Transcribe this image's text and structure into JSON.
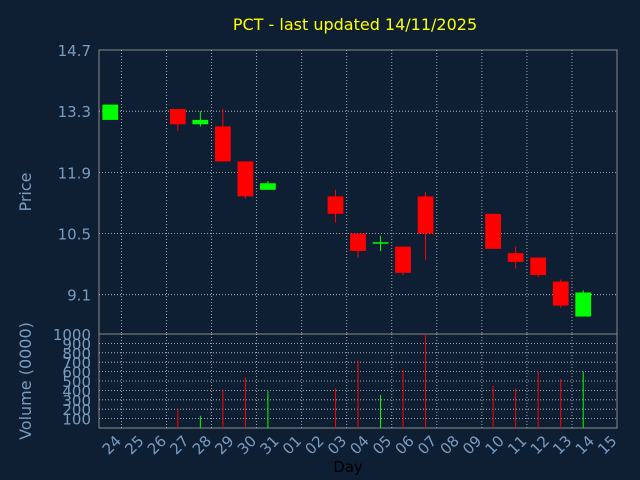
{
  "chart_data": [
    {
      "type": "candlestick",
      "title": "PCT - last updated 14/11/2025",
      "ylabel": "Price",
      "ylim": [
        8.2,
        14.7
      ],
      "yticks": [
        "14.7",
        "13.3",
        "11.9",
        "10.5",
        "9.1"
      ],
      "grid": true,
      "series": [
        {
          "day": "24",
          "open": 13.1,
          "high": 13.45,
          "low": 13.1,
          "close": 13.45
        },
        {
          "day": "27",
          "open": 13.35,
          "high": 13.35,
          "low": 12.85,
          "close": 13.0
        },
        {
          "day": "28",
          "open": 13.0,
          "high": 13.3,
          "low": 12.95,
          "close": 13.1
        },
        {
          "day": "29",
          "open": 12.95,
          "high": 13.35,
          "low": 12.15,
          "close": 12.15
        },
        {
          "day": "30",
          "open": 12.15,
          "high": 12.15,
          "low": 11.3,
          "close": 11.35
        },
        {
          "day": "31",
          "open": 11.5,
          "high": 11.7,
          "low": 11.5,
          "close": 11.65
        },
        {
          "day": "03",
          "open": 11.35,
          "high": 11.5,
          "low": 10.75,
          "close": 10.95
        },
        {
          "day": "04",
          "open": 10.5,
          "high": 10.5,
          "low": 9.95,
          "close": 10.1
        },
        {
          "day": "05",
          "open": 10.3,
          "high": 10.45,
          "low": 10.1,
          "close": 10.3
        },
        {
          "day": "06",
          "open": 10.2,
          "high": 10.2,
          "low": 9.55,
          "close": 9.6
        },
        {
          "day": "07",
          "open": 11.35,
          "high": 11.45,
          "low": 9.9,
          "close": 10.5
        },
        {
          "day": "10",
          "open": 10.95,
          "high": 10.95,
          "low": 10.15,
          "close": 10.15
        },
        {
          "day": "11",
          "open": 10.05,
          "high": 10.2,
          "low": 9.7,
          "close": 9.85
        },
        {
          "day": "12",
          "open": 9.95,
          "high": 9.95,
          "low": 9.5,
          "close": 9.55
        },
        {
          "day": "13",
          "open": 9.4,
          "high": 9.45,
          "low": 8.8,
          "close": 8.85
        },
        {
          "day": "14",
          "open": 8.6,
          "high": 9.2,
          "low": 8.6,
          "close": 9.15
        }
      ]
    },
    {
      "type": "bar",
      "ylabel": "Volume (0000)",
      "xlabel": "Day",
      "ylim": [
        0,
        1000
      ],
      "yticks": [
        "1000",
        "900",
        "800",
        "700",
        "600",
        "500",
        "400",
        "300",
        "200",
        "100"
      ],
      "categories": [
        "24",
        "25",
        "26",
        "27",
        "28",
        "29",
        "30",
        "31",
        "01",
        "02",
        "03",
        "04",
        "05",
        "06",
        "07",
        "08",
        "09",
        "10",
        "11",
        "12",
        "13",
        "14",
        "15"
      ],
      "values": [
        0,
        0,
        0,
        200,
        130,
        400,
        540,
        390,
        0,
        0,
        420,
        720,
        350,
        620,
        1000,
        0,
        0,
        450,
        420,
        600,
        520,
        600,
        0
      ],
      "up": [
        false,
        false,
        false,
        false,
        true,
        false,
        false,
        true,
        false,
        false,
        false,
        false,
        true,
        false,
        false,
        false,
        false,
        false,
        false,
        false,
        false,
        true,
        false
      ]
    }
  ],
  "colors": {
    "background": "#0e1f33",
    "title": "#ffff00",
    "axis_text": "#7a9cc0",
    "up": "#00ff00",
    "down": "#ff0000"
  }
}
